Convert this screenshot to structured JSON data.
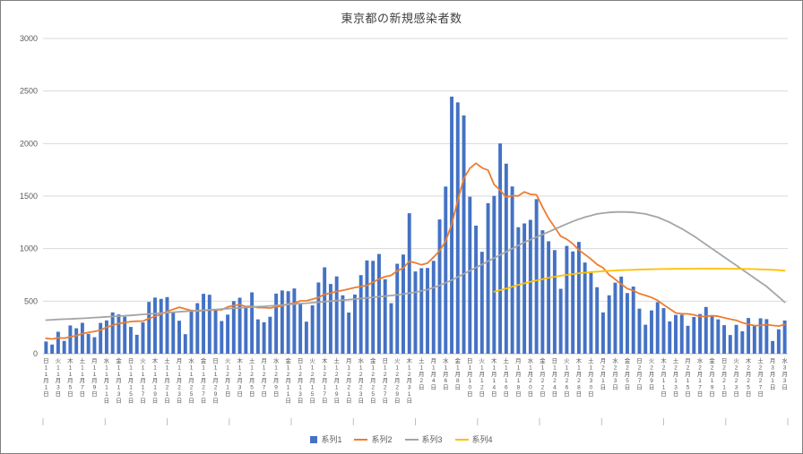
{
  "chart_data": {
    "type": "combo",
    "title": "東京都の新規感染者数",
    "legend_position": "bottom",
    "grid": true,
    "y_axis": {
      "min": 0,
      "max": 3000,
      "step": 500
    },
    "tick_every": 2,
    "x_tick_labels": [
      {
        "dow": "日",
        "date": "11月1日"
      },
      {
        "dow": "火",
        "date": "11月3日"
      },
      {
        "dow": "木",
        "date": "11月5日"
      },
      {
        "dow": "土",
        "date": "11月7日"
      },
      {
        "dow": "月",
        "date": "11月9日"
      },
      {
        "dow": "水",
        "date": "11月11日"
      },
      {
        "dow": "金",
        "date": "11月13日"
      },
      {
        "dow": "日",
        "date": "11月15日"
      },
      {
        "dow": "火",
        "date": "11月17日"
      },
      {
        "dow": "木",
        "date": "11月19日"
      },
      {
        "dow": "土",
        "date": "11月21日"
      },
      {
        "dow": "月",
        "date": "11月23日"
      },
      {
        "dow": "水",
        "date": "11月25日"
      },
      {
        "dow": "金",
        "date": "11月27日"
      },
      {
        "dow": "日",
        "date": "11月29日"
      },
      {
        "dow": "火",
        "date": "12月1日"
      },
      {
        "dow": "木",
        "date": "12月3日"
      },
      {
        "dow": "土",
        "date": "12月5日"
      },
      {
        "dow": "月",
        "date": "12月7日"
      },
      {
        "dow": "水",
        "date": "12月9日"
      },
      {
        "dow": "金",
        "date": "12月11日"
      },
      {
        "dow": "日",
        "date": "12月13日"
      },
      {
        "dow": "火",
        "date": "12月15日"
      },
      {
        "dow": "木",
        "date": "12月17日"
      },
      {
        "dow": "土",
        "date": "12月19日"
      },
      {
        "dow": "月",
        "date": "12月21日"
      },
      {
        "dow": "水",
        "date": "12月23日"
      },
      {
        "dow": "金",
        "date": "12月25日"
      },
      {
        "dow": "日",
        "date": "12月27日"
      },
      {
        "dow": "火",
        "date": "12月29日"
      },
      {
        "dow": "木",
        "date": "12月31日"
      },
      {
        "dow": "土",
        "date": "1月2日"
      },
      {
        "dow": "月",
        "date": "1月4日"
      },
      {
        "dow": "水",
        "date": "1月6日"
      },
      {
        "dow": "金",
        "date": "1月8日"
      },
      {
        "dow": "日",
        "date": "1月10日"
      },
      {
        "dow": "火",
        "date": "1月12日"
      },
      {
        "dow": "木",
        "date": "1月14日"
      },
      {
        "dow": "土",
        "date": "1月16日"
      },
      {
        "dow": "月",
        "date": "1月18日"
      },
      {
        "dow": "水",
        "date": "1月20日"
      },
      {
        "dow": "金",
        "date": "1月22日"
      },
      {
        "dow": "日",
        "date": "1月24日"
      },
      {
        "dow": "火",
        "date": "1月26日"
      },
      {
        "dow": "木",
        "date": "1月28日"
      },
      {
        "dow": "土",
        "date": "1月30日"
      },
      {
        "dow": "月",
        "date": "2月1日"
      },
      {
        "dow": "水",
        "date": "2月3日"
      },
      {
        "dow": "金",
        "date": "2月5日"
      },
      {
        "dow": "日",
        "date": "2月7日"
      },
      {
        "dow": "火",
        "date": "2月9日"
      },
      {
        "dow": "木",
        "date": "2月11日"
      },
      {
        "dow": "土",
        "date": "2月13日"
      },
      {
        "dow": "月",
        "date": "2月15日"
      },
      {
        "dow": "水",
        "date": "2月17日"
      },
      {
        "dow": "金",
        "date": "2月19日"
      },
      {
        "dow": "日",
        "date": "2月21日"
      },
      {
        "dow": "火",
        "date": "2月23日"
      },
      {
        "dow": "木",
        "date": "2月25日"
      },
      {
        "dow": "土",
        "date": "2月27日"
      },
      {
        "dow": "月",
        "date": "3月1日"
      },
      {
        "dow": "水",
        "date": "3月3日"
      }
    ],
    "series": [
      {
        "name": "系列1",
        "type": "bar",
        "color": "#4472c4",
        "values": [
          116,
          87,
          209,
          122,
          269,
          242,
          294,
          189,
          157,
          293,
          317,
          393,
          374,
          352,
          255,
          180,
          298,
          493,
          534,
          522,
          539,
          391,
          314,
          186,
          401,
          481,
          570,
          561,
          418,
          311,
          372,
          500,
          533,
          449,
          584,
          327,
          299,
          352,
          572,
          602,
          595,
          621,
          480,
          305,
          460,
          678,
          822,
          664,
          736,
          556,
          392,
          563,
          748,
          888,
          884,
          949,
          708,
          481,
          856,
          944,
          1337,
          783,
          814,
          816,
          884,
          1278,
          1591,
          2447,
          2392,
          2268,
          1494,
          1219,
          970,
          1433,
          1502,
          2001,
          1809,
          1592,
          1204,
          1240,
          1274,
          1471,
          1175,
          1070,
          986,
          618,
          1026,
          973,
          1064,
          868,
          769,
          633,
          393,
          556,
          676,
          734,
          577,
          639,
          429,
          276,
          412,
          491,
          434,
          307,
          369,
          371,
          266,
          350,
          378,
          445,
          353,
          327,
          272,
          178,
          275,
          213,
          340,
          270,
          337,
          329,
          121,
          232,
          316
        ]
      },
      {
        "name": "系列2",
        "type": "line",
        "color": "#ed7d31",
        "values": [
          147,
          140,
          152,
          148,
          160,
          172,
          191,
          202,
          212,
          224,
          252,
          269,
          288,
          296,
          306,
          309,
          310,
          335,
          355,
          376,
          403,
          422,
          442,
          426,
          412,
          405,
          412,
          415,
          419,
          418,
          445,
          459,
          466,
          449,
          452,
          439,
          438,
          435,
          445,
          455,
          476,
          481,
          503,
          504,
          519,
          534,
          566,
          576,
          592,
          603,
          615,
          630,
          640,
          650,
          681,
          711,
          733,
          746,
          788,
          816,
          880,
          865,
          846,
          862,
          919,
          979,
          1072,
          1230,
          1460,
          1668,
          1765,
          1813,
          1769,
          1746,
          1611,
          1555,
          1490,
          1504,
          1502,
          1540,
          1517,
          1513,
          1395,
          1289,
          1203,
          1119,
          1089,
          1046,
          987,
          944,
          901,
          850,
          818,
          751,
          708,
          661,
          620,
          601,
          572,
          555,
          535,
          508,
          465,
          427,
          388,
          380,
          379,
          370,
          354,
          355,
          362,
          356,
          342,
          329,
          318,
          295,
          280,
          268,
          269,
          277,
          269,
          263,
          278
        ]
      },
      {
        "name": "系列3",
        "type": "line",
        "color": "#a5a5a5",
        "values": [
          320,
          323,
          326,
          329,
          331,
          334,
          337,
          340,
          344,
          347,
          351,
          354,
          358,
          361,
          365,
          369,
          374,
          378,
          382,
          387,
          391,
          395,
          399,
          403,
          406,
          410,
          414,
          418,
          421,
          425,
          429,
          433,
          436,
          440,
          444,
          448,
          451,
          455,
          459,
          464,
          468,
          473,
          477,
          481,
          486,
          490,
          495,
          500,
          505,
          510,
          515,
          520,
          525,
          531,
          537,
          543,
          548,
          554,
          560,
          568,
          577,
          585,
          598,
          610,
          630,
          650,
          675,
          700,
          730,
          760,
          790,
          820,
          850,
          880,
          910,
          940,
          970,
          1000,
          1030,
          1060,
          1085,
          1110,
          1135,
          1160,
          1185,
          1210,
          1235,
          1260,
          1280,
          1300,
          1315,
          1330,
          1338,
          1345,
          1348,
          1350,
          1348,
          1345,
          1338,
          1330,
          1315,
          1300,
          1275,
          1250,
          1220,
          1190,
          1155,
          1120,
          1080,
          1040,
          1000,
          960,
          920,
          880,
          840,
          800,
          760,
          720,
          680,
          640,
          590,
          540,
          490
        ]
      },
      {
        "name": "系列4",
        "type": "line",
        "color": "#ffc000",
        "values": [
          null,
          null,
          null,
          null,
          null,
          null,
          null,
          null,
          null,
          null,
          null,
          null,
          null,
          null,
          null,
          null,
          null,
          null,
          null,
          null,
          null,
          null,
          null,
          null,
          null,
          null,
          null,
          null,
          null,
          null,
          null,
          null,
          null,
          null,
          null,
          null,
          null,
          null,
          null,
          null,
          null,
          null,
          null,
          null,
          null,
          null,
          null,
          null,
          null,
          null,
          null,
          null,
          null,
          null,
          null,
          null,
          null,
          null,
          null,
          null,
          null,
          null,
          null,
          null,
          null,
          null,
          null,
          null,
          null,
          null,
          null,
          null,
          null,
          null,
          590,
          605,
          620,
          638,
          655,
          670,
          685,
          698,
          710,
          722,
          732,
          742,
          750,
          758,
          765,
          771,
          777,
          781,
          785,
          789,
          792,
          795,
          797,
          799,
          801,
          803,
          804,
          805,
          806,
          807,
          808,
          808,
          809,
          809,
          810,
          810,
          810,
          810,
          809,
          809,
          808,
          807,
          806,
          805,
          803,
          801,
          799,
          795,
          790
        ]
      }
    ]
  }
}
